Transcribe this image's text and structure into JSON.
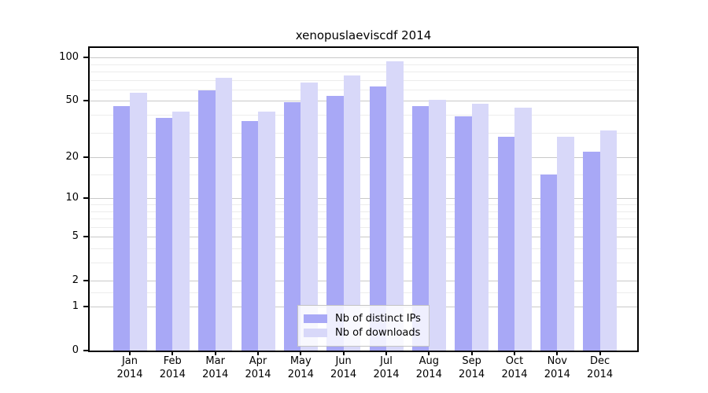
{
  "chart_data": {
    "type": "bar",
    "title": "xenopuslaeviscdf 2014",
    "categories": [
      "Jan",
      "Feb",
      "Mar",
      "Apr",
      "May",
      "Jun",
      "Jul",
      "Aug",
      "Sep",
      "Oct",
      "Nov",
      "Dec"
    ],
    "year_label": "2014",
    "series": [
      {
        "name": "Nb of distinct IPs",
        "color": "#a8a8f6",
        "values": [
          46,
          38,
          59,
          36,
          49,
          54,
          63,
          46,
          39,
          28,
          15,
          22
        ]
      },
      {
        "name": "Nb of downloads",
        "color": "#d8d8f9",
        "values": [
          57,
          42,
          72,
          42,
          67,
          75,
          94,
          51,
          48,
          45,
          28,
          31
        ]
      }
    ],
    "y_axis": {
      "scale": "log10(value+1)",
      "major_ticks": [
        0,
        1,
        2,
        5,
        10,
        20,
        50,
        100
      ],
      "minor_gridlines": [
        1.5,
        3,
        4,
        6,
        7,
        8,
        9,
        15,
        30,
        40,
        60,
        70,
        80,
        90
      ],
      "range": [
        0,
        116
      ]
    },
    "x_axis": {
      "tick_style": "month-over-year"
    },
    "legend_position": "bottom-center",
    "grid": true
  },
  "colors": {
    "bar_distinct_ips": "#a8a8f6",
    "bar_downloads": "#d8d8f9",
    "major_grid": "#c9c9c9",
    "minor_grid": "#ececec",
    "spine": "#000000",
    "background": "#ffffff"
  }
}
